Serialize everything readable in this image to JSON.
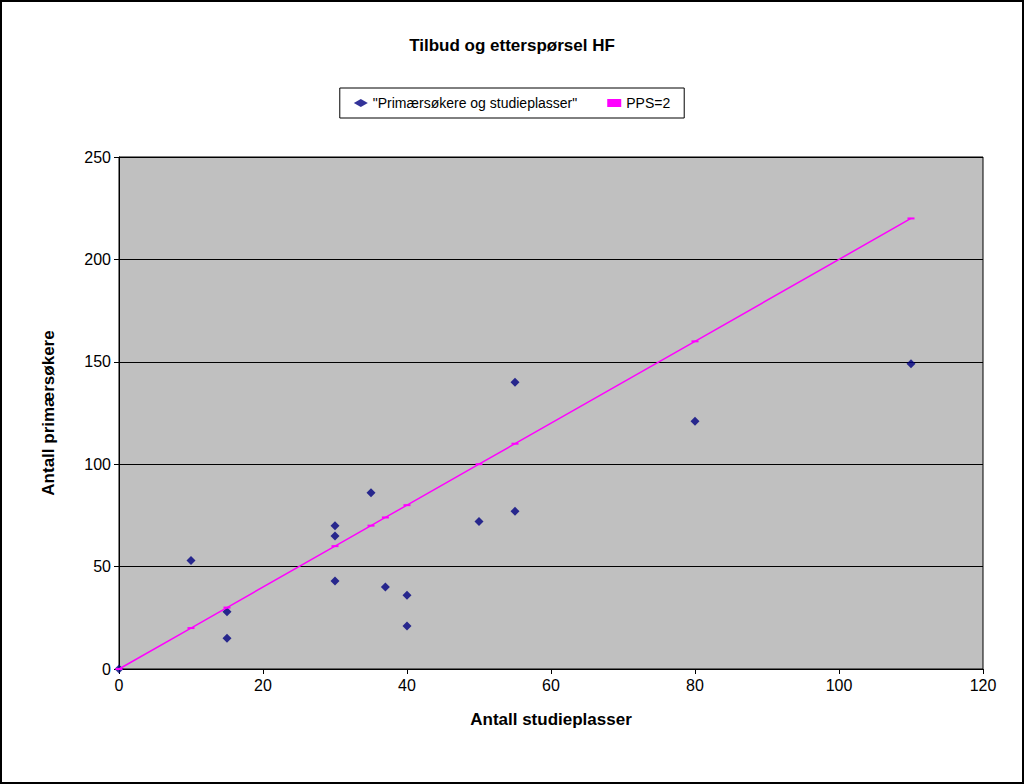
{
  "chart_data": {
    "type": "scatter",
    "title": "Tilbud og etterspørsel HF",
    "x_label": "Antall studieplasser",
    "y_label": "Antall primærsøkere",
    "xlim": [
      0,
      120
    ],
    "xticks": [
      0,
      20,
      40,
      60,
      80,
      100,
      120
    ],
    "ylim": [
      0,
      250
    ],
    "yticks": [
      0,
      50,
      100,
      150,
      200,
      250
    ],
    "grid": true,
    "legend": "top",
    "series": [
      {
        "name": "\"Primærsøkere og studieplasser\"",
        "type": "scatter",
        "color": "#000080",
        "marker": "diamond",
        "x": [
          0,
          10,
          15,
          15,
          30,
          30,
          30,
          35,
          37,
          40,
          40,
          50,
          55,
          55,
          80,
          110
        ],
        "values": [
          0,
          53,
          28,
          15,
          70,
          65,
          43,
          86,
          40,
          36,
          21,
          72,
          140,
          77,
          121,
          149
        ]
      },
      {
        "name": "PPS=2",
        "type": "line",
        "color": "#ff00ff",
        "marker": "dash",
        "line_style": "solid",
        "x": [
          0,
          10,
          15,
          30,
          35,
          37,
          40,
          50,
          55,
          80,
          110
        ],
        "values": [
          0,
          20,
          30,
          60,
          70,
          74,
          80,
          100,
          110,
          160,
          220
        ]
      }
    ]
  }
}
